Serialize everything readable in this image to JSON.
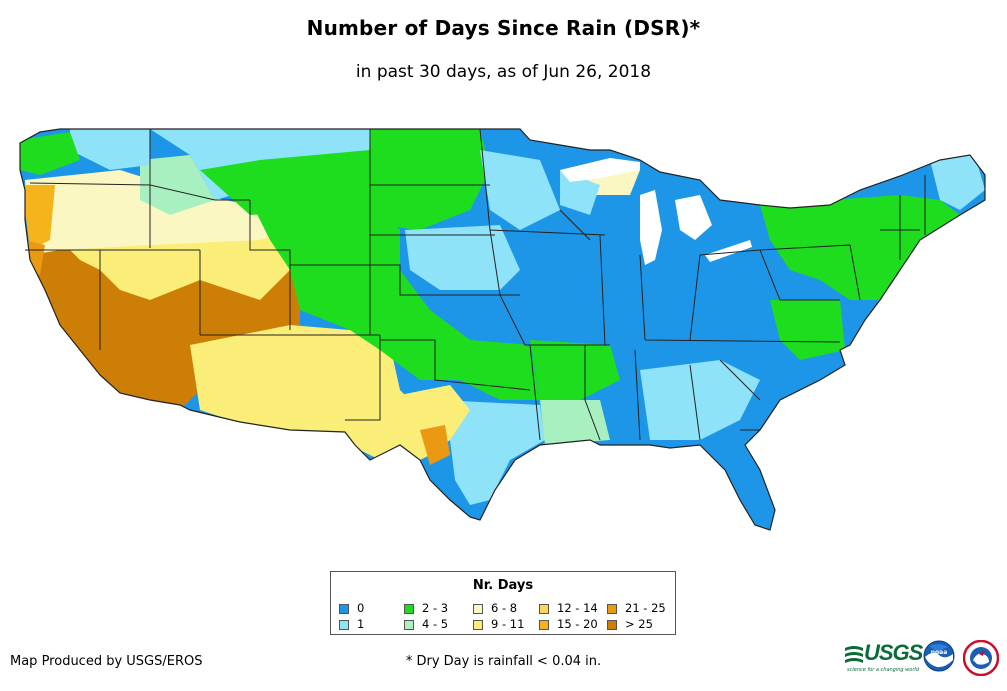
{
  "header": {
    "title": "Number of Days Since Rain (DSR)*",
    "subtitle": "in past 30 days, as of Jun 26, 2018"
  },
  "legend": {
    "title": "Nr. Days",
    "items": [
      {
        "label": "0",
        "color": "#1e96e8"
      },
      {
        "label": "1",
        "color": "#8ee3f8"
      },
      {
        "label": "2 - 3",
        "color": "#1edd1e"
      },
      {
        "label": "4 - 5",
        "color": "#a8f0c0"
      },
      {
        "label": "6 - 8",
        "color": "#fbf7c3"
      },
      {
        "label": "9 - 11",
        "color": "#faee78"
      },
      {
        "label": "12 - 14",
        "color": "#f8d75a"
      },
      {
        "label": "15 - 20",
        "color": "#f6b41c"
      },
      {
        "label": "21 - 25",
        "color": "#e99a12"
      },
      {
        "label": "> 25",
        "color": "#cc7e06"
      }
    ]
  },
  "footer": {
    "credit": "Map Produced by USGS/EROS",
    "footnote": "* Dry Day is rainfall < 0.04 in."
  },
  "logos": {
    "usgs": "USGS",
    "usgs_tagline": "science for a changing world",
    "noaa": "noaa",
    "nws": "NATIONAL WEATHER SERVICE"
  },
  "icons": {
    "usgs": "usgs-logo-icon",
    "noaa": "noaa-logo-icon",
    "nws": "nws-logo-icon"
  }
}
